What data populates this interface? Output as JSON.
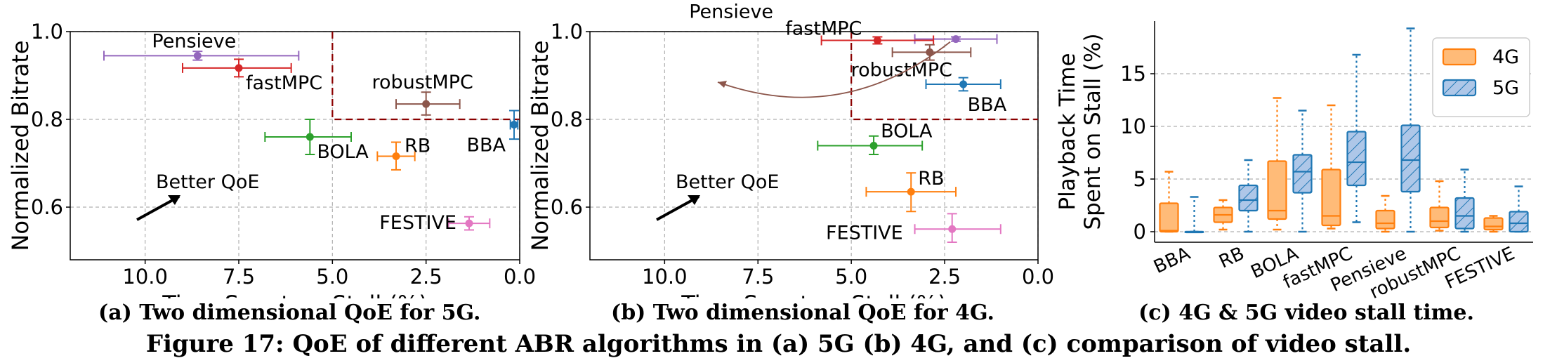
{
  "figure": {
    "caption": "Figure 17: QoE of different ABR algorithms in (a) 5G (b) 4G, and (c) comparison of video stall."
  },
  "colors": {
    "BBA": "#1f77b4",
    "RB": "#ff7f0e",
    "BOLA": "#2ca02c",
    "fastMPC": "#d62728",
    "Pensieve": "#9467bd",
    "robustMPC": "#8c564b",
    "FESTIVE": "#e377c2",
    "region": "#8b0000",
    "4G_fill": "#ffbb78",
    "5G_fill": "#aec7e8"
  },
  "chart_data": [
    {
      "type": "scatter",
      "caption": "(a) Two dimensional QoE for 5G.",
      "xlabel": "Time Spent on Stall (%)",
      "ylabel": "Normalized Bitrate",
      "xlim": [
        12,
        0
      ],
      "ylim": [
        0.48,
        1.0
      ],
      "xticks": [
        "10.0",
        "7.5",
        "5.0",
        "2.5",
        "0.0"
      ],
      "xtick_values": [
        10,
        7.5,
        5,
        2.5,
        0
      ],
      "yticks": [
        "0.6",
        "0.8",
        "1.0"
      ],
      "ytick_values": [
        0.6,
        0.8,
        1.0
      ],
      "grid": true,
      "annotation": "Better QoE",
      "region_corner": [
        5.0,
        0.8
      ],
      "points": [
        {
          "name": "Pensieve",
          "x": 8.6,
          "y": 0.945,
          "xerr": [
            11.1,
            5.9
          ],
          "yerr": [
            0.935,
            0.955
          ]
        },
        {
          "name": "fastMPC",
          "x": 7.5,
          "y": 0.917,
          "xerr": [
            9.0,
            6.1
          ],
          "yerr": [
            0.897,
            0.937
          ]
        },
        {
          "name": "robustMPC",
          "x": 2.5,
          "y": 0.835,
          "xerr": [
            3.3,
            1.6
          ],
          "yerr": [
            0.81,
            0.862
          ]
        },
        {
          "name": "BBA",
          "x": 0.15,
          "y": 0.788,
          "xerr": [
            0.25,
            0.05
          ],
          "yerr": [
            0.755,
            0.82
          ]
        },
        {
          "name": "BOLA",
          "x": 5.6,
          "y": 0.76,
          "xerr": [
            6.8,
            4.5
          ],
          "yerr": [
            0.72,
            0.8
          ]
        },
        {
          "name": "RB",
          "x": 3.3,
          "y": 0.716,
          "xerr": [
            3.8,
            2.8
          ],
          "yerr": [
            0.685,
            0.748
          ]
        },
        {
          "name": "FESTIVE",
          "x": 1.35,
          "y": 0.563,
          "xerr": [
            1.9,
            0.8
          ],
          "yerr": [
            0.548,
            0.578
          ]
        }
      ]
    },
    {
      "type": "scatter",
      "caption": "(b) Two dimensional QoE for 4G.",
      "xlabel": "Time Spent on Stall (%)",
      "ylabel": "Normalized Bitrate",
      "xlim": [
        12,
        0
      ],
      "ylim": [
        0.48,
        1.0
      ],
      "xticks": [
        "10.0",
        "7.5",
        "5.0",
        "2.5",
        "0.0"
      ],
      "xtick_values": [
        10,
        7.5,
        5,
        2.5,
        0
      ],
      "yticks": [
        "0.6",
        "0.8",
        "1.0"
      ],
      "ytick_values": [
        0.6,
        0.8,
        1.0
      ],
      "grid": true,
      "annotation": "Better QoE",
      "region_corner": [
        5.0,
        0.8
      ],
      "points": [
        {
          "name": "Pensieve",
          "x": 2.2,
          "y": 0.983,
          "xerr": [
            3.3,
            1.1
          ],
          "yerr": [
            0.978,
            0.988
          ]
        },
        {
          "name": "fastMPC",
          "x": 4.3,
          "y": 0.98,
          "xerr": [
            5.8,
            2.8
          ],
          "yerr": [
            0.972,
            0.988
          ]
        },
        {
          "name": "robustMPC",
          "x": 2.9,
          "y": 0.953,
          "xerr": [
            3.9,
            1.8
          ],
          "yerr": [
            0.935,
            0.97
          ]
        },
        {
          "name": "BBA",
          "x": 2.0,
          "y": 0.88,
          "xerr": [
            3.0,
            1.0
          ],
          "yerr": [
            0.865,
            0.895
          ]
        },
        {
          "name": "BOLA",
          "x": 4.4,
          "y": 0.74,
          "xerr": [
            5.9,
            3.1
          ],
          "yerr": [
            0.72,
            0.762
          ]
        },
        {
          "name": "RB",
          "x": 3.4,
          "y": 0.635,
          "xerr": [
            4.6,
            2.2
          ],
          "yerr": [
            0.59,
            0.678
          ]
        },
        {
          "name": "FESTIVE",
          "x": 2.3,
          "y": 0.55,
          "xerr": [
            3.3,
            1.0
          ],
          "yerr": [
            0.52,
            0.585
          ]
        }
      ]
    },
    {
      "type": "box",
      "caption": "(c) 4G & 5G video stall time.",
      "ylabel": "Playback Time\nSpent on Stall (%)",
      "ylim": [
        -1,
        20
      ],
      "yticks": [
        "0",
        "5",
        "10",
        "15"
      ],
      "ytick_values": [
        0,
        5,
        10,
        15
      ],
      "grid": true,
      "legend_position": "top-right",
      "categories": [
        "BBA",
        "RB",
        "BOLA",
        "fastMPC",
        "Pensieve",
        "robustMPC",
        "FESTIVE"
      ],
      "series": [
        {
          "name": "4G",
          "boxes": [
            {
              "min": 0,
              "q1": 0,
              "median": 0.1,
              "q3": 2.7,
              "max": 5.7
            },
            {
              "min": 0.2,
              "q1": 0.9,
              "median": 1.6,
              "q3": 2.3,
              "max": 3.0
            },
            {
              "min": 0.2,
              "q1": 1.2,
              "median": 2.0,
              "q3": 6.7,
              "max": 12.7
            },
            {
              "min": 0.3,
              "q1": 0.6,
              "median": 1.5,
              "q3": 5.9,
              "max": 12.0
            },
            {
              "min": 0,
              "q1": 0.3,
              "median": 0.8,
              "q3": 2.0,
              "max": 3.4
            },
            {
              "min": 0.1,
              "q1": 0.4,
              "median": 1.0,
              "q3": 2.3,
              "max": 4.8
            },
            {
              "min": 0,
              "q1": 0.2,
              "median": 0.5,
              "q3": 1.3,
              "max": 1.5
            }
          ]
        },
        {
          "name": "5G",
          "boxes": [
            {
              "min": 0,
              "q1": 0,
              "median": 0,
              "q3": 0,
              "max": 3.3
            },
            {
              "min": 0,
              "q1": 2.0,
              "median": 3.0,
              "q3": 4.4,
              "max": 6.8
            },
            {
              "min": 0,
              "q1": 3.7,
              "median": 5.7,
              "q3": 7.3,
              "max": 11.5
            },
            {
              "min": 0.9,
              "q1": 4.4,
              "median": 6.6,
              "q3": 9.5,
              "max": 16.8
            },
            {
              "min": 0,
              "q1": 3.8,
              "median": 6.8,
              "q3": 10.1,
              "max": 19.3
            },
            {
              "min": 0,
              "q1": 0.3,
              "median": 1.5,
              "q3": 3.2,
              "max": 5.9
            },
            {
              "min": 0,
              "q1": 0,
              "median": 0.8,
              "q3": 1.9,
              "max": 4.3
            }
          ]
        }
      ]
    }
  ]
}
